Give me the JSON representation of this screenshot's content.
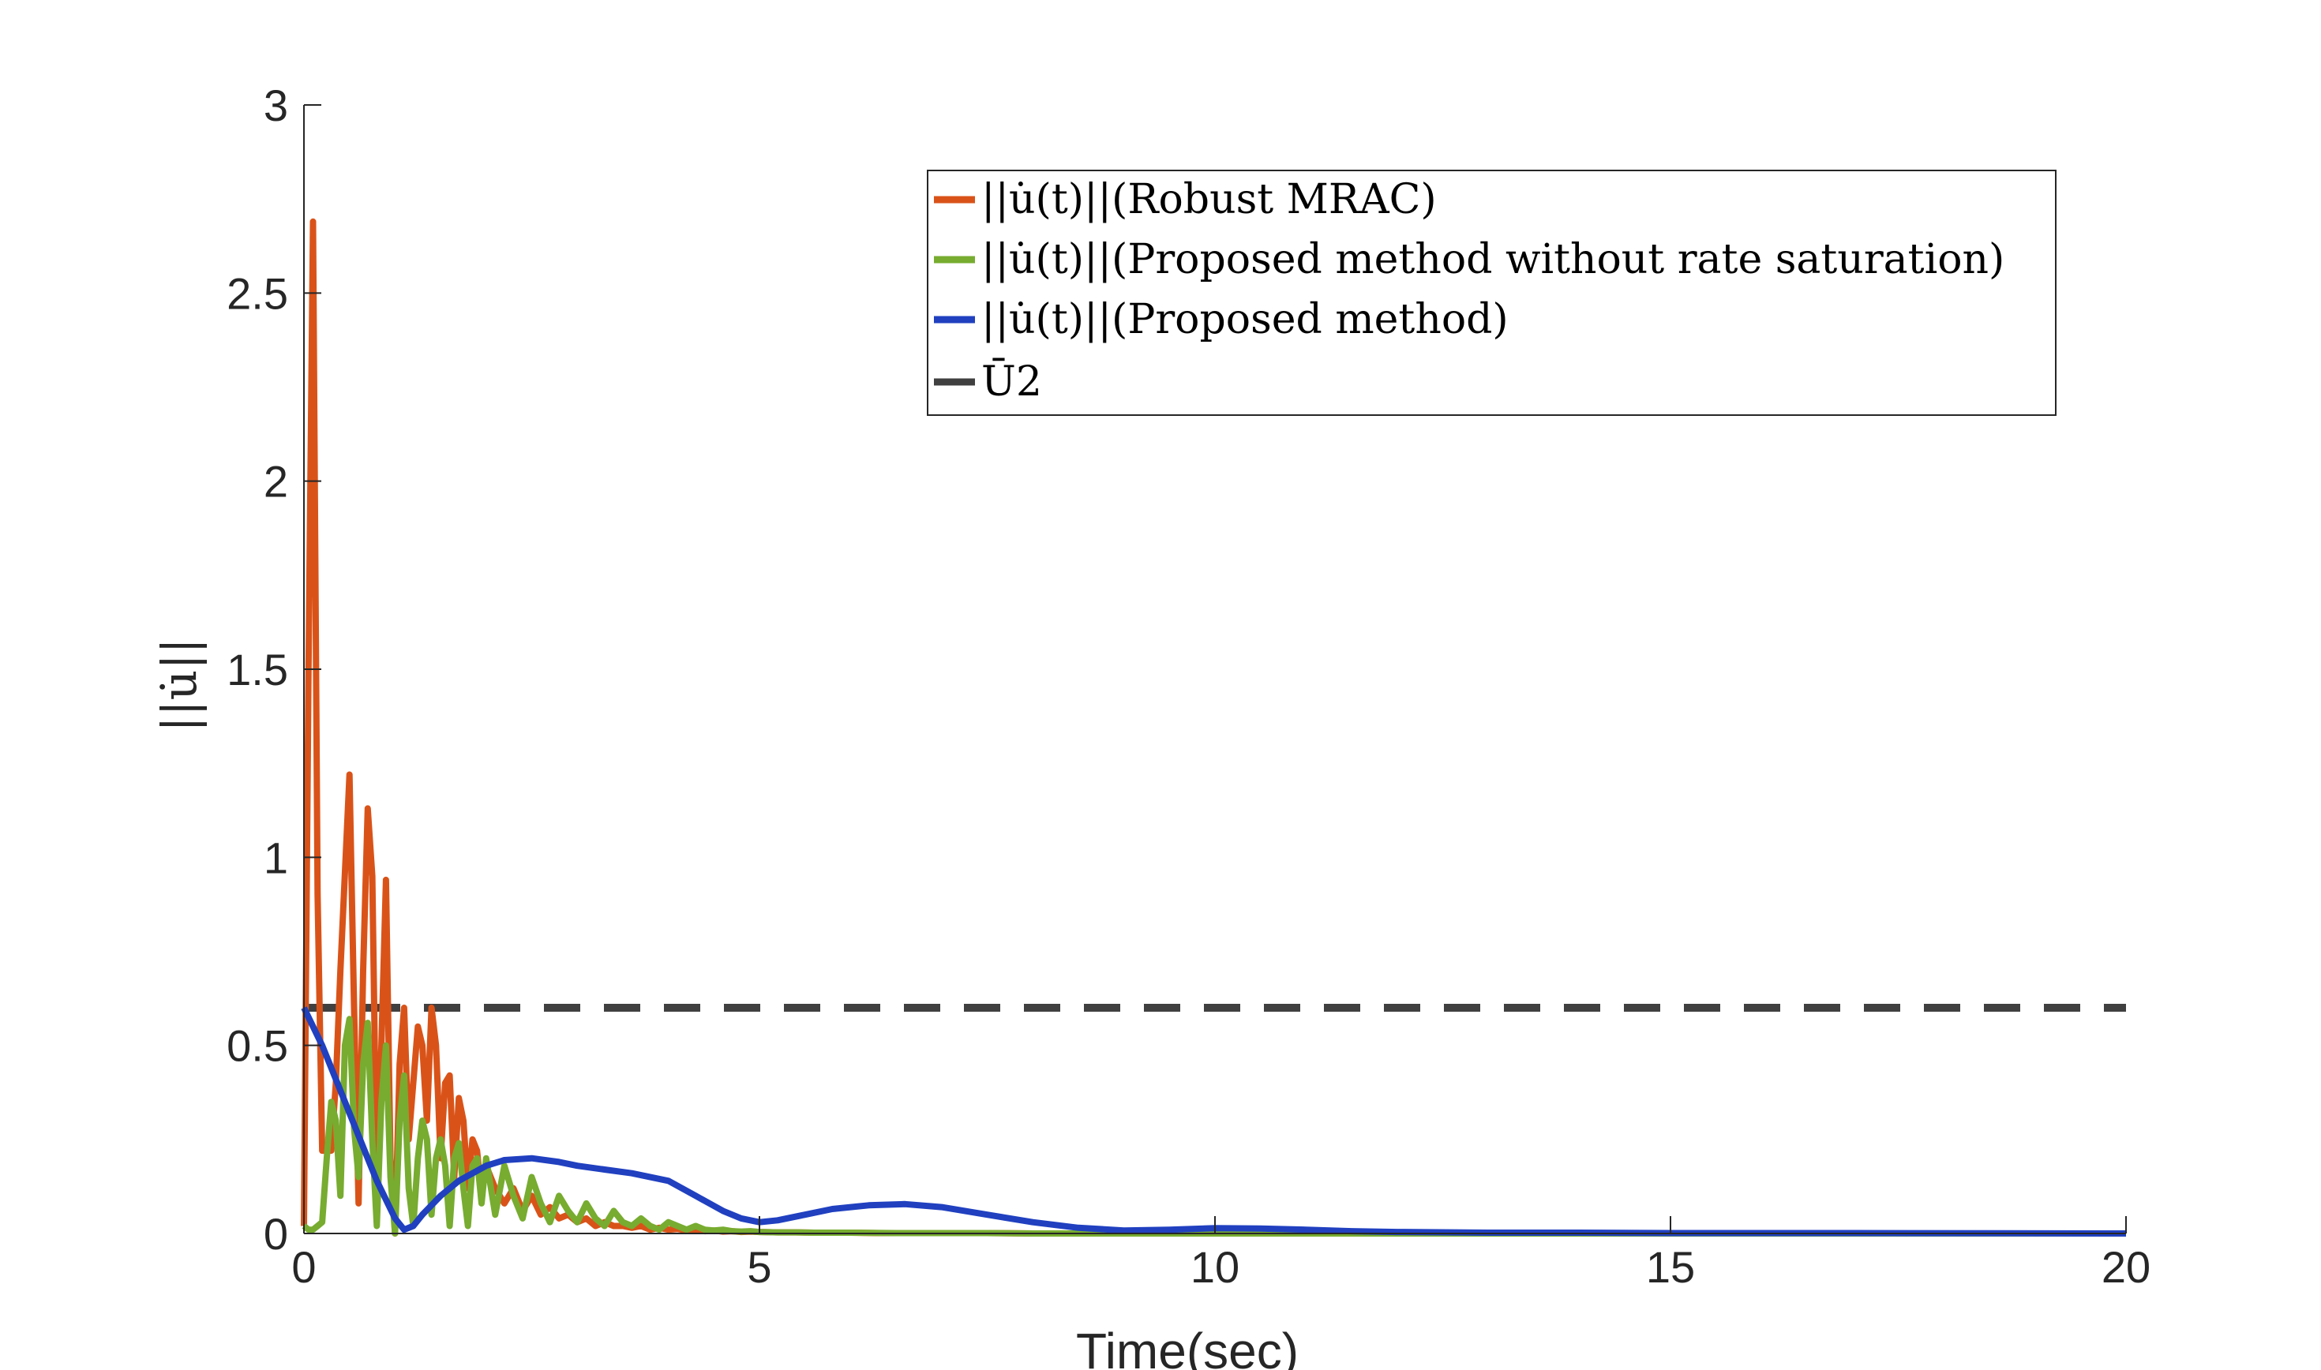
{
  "chart_data": {
    "type": "line",
    "title": "",
    "xlabel": "Time(sec)",
    "ylabel": "||u̇||",
    "xlim": [
      0,
      20
    ],
    "ylim": [
      0,
      3
    ],
    "xticks": [
      "0",
      "5",
      "10",
      "15",
      "20"
    ],
    "yticks": [
      "0",
      "0.5",
      "1",
      "1.5",
      "2",
      "2.5",
      "3"
    ],
    "grid": false,
    "legend_position": "top-right",
    "series": [
      {
        "name": "||u̇(t)||(Robust MRAC)",
        "color": "#D95319",
        "style": "solid",
        "x": [
          0,
          0.05,
          0.1,
          0.15,
          0.2,
          0.25,
          0.3,
          0.35,
          0.4,
          0.5,
          0.55,
          0.6,
          0.65,
          0.7,
          0.75,
          0.8,
          0.85,
          0.9,
          0.95,
          1.0,
          1.05,
          1.1,
          1.15,
          1.2,
          1.25,
          1.3,
          1.35,
          1.4,
          1.45,
          1.5,
          1.55,
          1.6,
          1.65,
          1.7,
          1.75,
          1.8,
          1.85,
          1.9,
          1.95,
          2.0,
          2.1,
          2.2,
          2.3,
          2.4,
          2.5,
          2.6,
          2.7,
          2.8,
          2.9,
          3.0,
          3.1,
          3.2,
          3.3,
          3.4,
          3.5,
          3.6,
          3.7,
          3.8,
          3.9,
          4.0,
          4.1,
          4.2,
          4.3,
          4.4,
          4.5,
          4.6,
          4.7,
          4.8,
          4.9,
          5.0,
          5.2,
          5.4,
          5.6,
          5.8,
          6.0,
          6.3,
          6.6,
          7.0,
          7.5,
          8.0,
          9.0,
          10.0,
          12.0,
          15.0,
          20.0
        ],
        "values": [
          0.02,
          1.5,
          2.69,
          0.9,
          0.22,
          0.22,
          0.22,
          0.4,
          0.7,
          1.22,
          0.6,
          0.08,
          0.7,
          1.13,
          0.95,
          0.12,
          0.5,
          0.94,
          0.2,
          0.0,
          0.45,
          0.6,
          0.25,
          0.4,
          0.55,
          0.5,
          0.3,
          0.6,
          0.5,
          0.2,
          0.4,
          0.42,
          0.15,
          0.36,
          0.3,
          0.12,
          0.25,
          0.22,
          0.1,
          0.18,
          0.12,
          0.08,
          0.12,
          0.06,
          0.1,
          0.05,
          0.07,
          0.04,
          0.05,
          0.03,
          0.04,
          0.02,
          0.03,
          0.02,
          0.02,
          0.015,
          0.02,
          0.01,
          0.015,
          0.01,
          0.012,
          0.008,
          0.01,
          0.006,
          0.008,
          0.005,
          0.006,
          0.004,
          0.005,
          0.004,
          0.003,
          0.003,
          0.002,
          0.002,
          0.002,
          0.001,
          0.001,
          0.001,
          0.001,
          0.0,
          0.0,
          0.0,
          0.0,
          0.0,
          0.0
        ]
      },
      {
        "name": "||u̇(t)||(Proposed method without rate saturation)",
        "color": "#77AC30",
        "style": "solid",
        "x": [
          0,
          0.05,
          0.1,
          0.15,
          0.2,
          0.25,
          0.3,
          0.35,
          0.4,
          0.45,
          0.5,
          0.55,
          0.6,
          0.65,
          0.7,
          0.75,
          0.8,
          0.85,
          0.9,
          0.95,
          1.0,
          1.05,
          1.1,
          1.15,
          1.2,
          1.25,
          1.3,
          1.35,
          1.4,
          1.45,
          1.5,
          1.55,
          1.6,
          1.65,
          1.7,
          1.75,
          1.8,
          1.85,
          1.9,
          1.95,
          2.0,
          2.1,
          2.2,
          2.3,
          2.4,
          2.5,
          2.6,
          2.7,
          2.8,
          2.9,
          3.0,
          3.1,
          3.2,
          3.3,
          3.4,
          3.5,
          3.6,
          3.7,
          3.8,
          3.9,
          4.0,
          4.1,
          4.2,
          4.3,
          4.4,
          4.5,
          4.6,
          4.7,
          4.8,
          4.9,
          5.0,
          5.2,
          5.4,
          5.6,
          5.8,
          6.0,
          6.5,
          7.0,
          7.5,
          8.0,
          9.0,
          10.0,
          12.0,
          15.0,
          20.0
        ],
        "values": [
          0.02,
          0.01,
          0.01,
          0.02,
          0.03,
          0.2,
          0.35,
          0.3,
          0.1,
          0.5,
          0.57,
          0.28,
          0.15,
          0.45,
          0.56,
          0.25,
          0.02,
          0.35,
          0.5,
          0.15,
          0.0,
          0.3,
          0.42,
          0.12,
          0.02,
          0.2,
          0.3,
          0.25,
          0.05,
          0.2,
          0.25,
          0.18,
          0.02,
          0.2,
          0.24,
          0.12,
          0.02,
          0.18,
          0.2,
          0.08,
          0.2,
          0.05,
          0.18,
          0.1,
          0.04,
          0.15,
          0.08,
          0.03,
          0.1,
          0.06,
          0.03,
          0.08,
          0.04,
          0.02,
          0.06,
          0.03,
          0.02,
          0.04,
          0.02,
          0.01,
          0.03,
          0.02,
          0.01,
          0.02,
          0.01,
          0.008,
          0.01,
          0.006,
          0.005,
          0.006,
          0.004,
          0.003,
          0.003,
          0.002,
          0.002,
          0.002,
          0.001,
          0.001,
          0.001,
          0.0,
          0.0,
          0.0,
          0.0,
          0.0,
          0.0
        ]
      },
      {
        "name": "||u̇(t)||(Proposed method)",
        "color": "#2040C0",
        "style": "solid",
        "x": [
          0,
          0.2,
          0.4,
          0.6,
          0.8,
          1.0,
          1.1,
          1.2,
          1.3,
          1.5,
          1.7,
          2.0,
          2.2,
          2.5,
          2.8,
          3.0,
          3.3,
          3.6,
          4.0,
          4.3,
          4.6,
          4.8,
          5.0,
          5.2,
          5.5,
          5.8,
          6.2,
          6.6,
          7.0,
          7.5,
          8.0,
          8.5,
          9.0,
          9.5,
          10.0,
          10.5,
          11.0,
          11.5,
          12.0,
          13.0,
          14.0,
          15.0,
          17.0,
          20.0
        ],
        "values": [
          0.6,
          0.5,
          0.38,
          0.26,
          0.14,
          0.04,
          0.01,
          0.02,
          0.05,
          0.1,
          0.14,
          0.18,
          0.195,
          0.2,
          0.19,
          0.18,
          0.17,
          0.16,
          0.14,
          0.1,
          0.06,
          0.04,
          0.03,
          0.035,
          0.05,
          0.065,
          0.075,
          0.078,
          0.07,
          0.05,
          0.03,
          0.015,
          0.008,
          0.01,
          0.014,
          0.013,
          0.01,
          0.006,
          0.004,
          0.002,
          0.002,
          0.001,
          0.001,
          0.0
        ]
      },
      {
        "name": "Ū2",
        "color": "#404040",
        "style": "dashed",
        "x": [
          0,
          20
        ],
        "values": [
          0.6,
          0.6
        ]
      }
    ]
  }
}
